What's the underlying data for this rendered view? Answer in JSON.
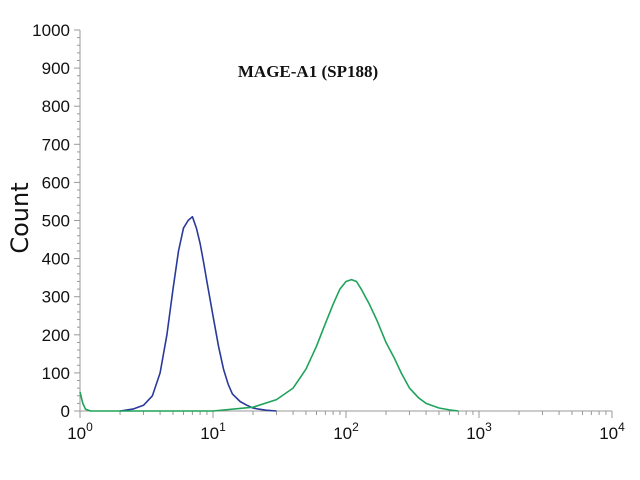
{
  "chart_data": {
    "type": "line",
    "title": "MAGE-A1 (SP188)",
    "xlabel": "",
    "ylabel": "Count",
    "x_scale": "log",
    "xlim": [
      1,
      10000
    ],
    "ylim": [
      0,
      1000
    ],
    "y_ticks": [
      "0",
      "100",
      "200",
      "300",
      "400",
      "500",
      "600",
      "700",
      "800",
      "900",
      "1000"
    ],
    "x_ticks": [
      {
        "value": 1,
        "base": "10",
        "exp": "0"
      },
      {
        "value": 10,
        "base": "10",
        "exp": "1"
      },
      {
        "value": 100,
        "base": "10",
        "exp": "2"
      },
      {
        "value": 1000,
        "base": "10",
        "exp": "3"
      },
      {
        "value": 10000,
        "base": "10",
        "exp": "4"
      }
    ],
    "grid": false,
    "legend": "none",
    "series": [
      {
        "color": "#2a3a9a",
        "x": [
          2.0,
          2.5,
          3.0,
          3.5,
          4.0,
          4.5,
          5.0,
          5.5,
          6.0,
          6.5,
          7.0,
          7.5,
          8.0,
          8.5,
          9.0,
          10,
          11,
          12,
          13,
          14,
          16,
          18,
          20,
          22,
          25,
          30
        ],
        "y": [
          0,
          5,
          15,
          40,
          100,
          200,
          320,
          420,
          480,
          500,
          510,
          480,
          440,
          390,
          340,
          250,
          170,
          110,
          70,
          45,
          25,
          15,
          8,
          5,
          2,
          0
        ]
      },
      {
        "color": "#1fa35a",
        "x": [
          1.0,
          1.05,
          1.1,
          1.2,
          10,
          20,
          30,
          40,
          50,
          60,
          70,
          80,
          90,
          100,
          110,
          120,
          130,
          150,
          170,
          200,
          230,
          260,
          300,
          350,
          400,
          500,
          600,
          700
        ],
        "y": [
          50,
          20,
          5,
          0,
          0,
          10,
          30,
          60,
          110,
          170,
          230,
          280,
          320,
          340,
          345,
          340,
          320,
          280,
          240,
          180,
          140,
          100,
          60,
          35,
          20,
          8,
          3,
          0
        ]
      }
    ]
  }
}
